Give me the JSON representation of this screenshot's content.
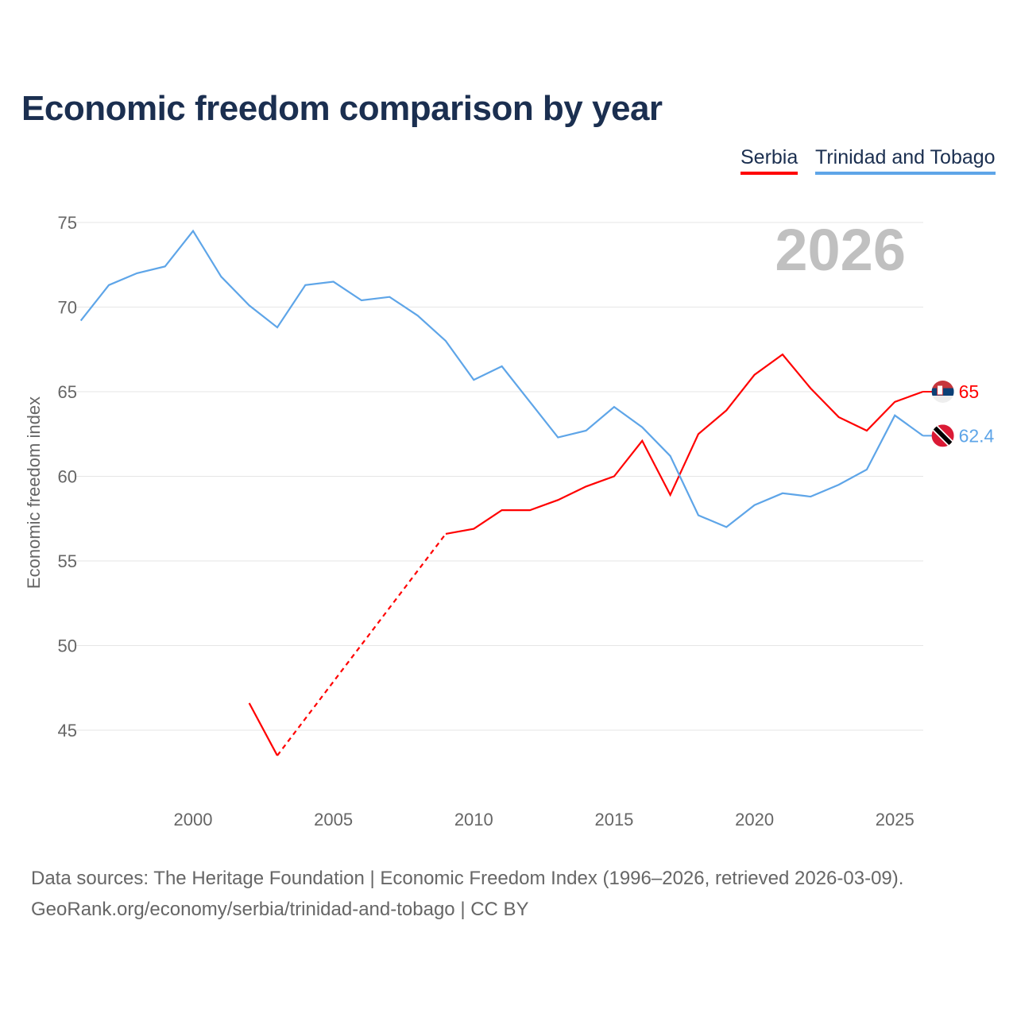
{
  "chart_data": {
    "type": "line",
    "title": "Economic freedom comparison by year",
    "xlabel": "",
    "ylabel": "Economic freedom index",
    "xlim": [
      1996,
      2026
    ],
    "ylim": [
      41,
      77
    ],
    "yticks": [
      45,
      50,
      55,
      60,
      65,
      70,
      75
    ],
    "xticks": [
      2000,
      2005,
      2010,
      2015,
      2020,
      2025
    ],
    "grid": true,
    "legend_position": "top-right",
    "year_watermark": "2026",
    "series": [
      {
        "name": "Serbia",
        "color": "#ff0000",
        "end_label": "65",
        "flag": "serbia-flag",
        "x": [
          2002,
          2003,
          2009,
          2010,
          2011,
          2012,
          2013,
          2014,
          2015,
          2016,
          2017,
          2018,
          2019,
          2020,
          2021,
          2022,
          2023,
          2024,
          2025,
          2026
        ],
        "y": [
          46.6,
          43.5,
          56.6,
          56.9,
          58.0,
          58.0,
          58.6,
          59.4,
          60.0,
          62.1,
          58.9,
          62.5,
          63.9,
          66.0,
          67.2,
          65.2,
          63.5,
          62.7,
          64.4,
          65.0
        ],
        "gaps": [
          [
            2003,
            2009
          ]
        ]
      },
      {
        "name": "Trinidad and Tobago",
        "color": "#5ea5e8",
        "end_label": "62.4",
        "flag": "trinidad-and-tobago-flag",
        "x": [
          1996,
          1997,
          1998,
          1999,
          2000,
          2001,
          2002,
          2003,
          2004,
          2005,
          2006,
          2007,
          2008,
          2009,
          2010,
          2011,
          2012,
          2013,
          2014,
          2015,
          2016,
          2017,
          2018,
          2019,
          2020,
          2021,
          2022,
          2023,
          2024,
          2025,
          2026
        ],
        "y": [
          69.2,
          71.3,
          72.0,
          72.4,
          74.5,
          71.8,
          70.1,
          68.8,
          71.3,
          71.5,
          70.4,
          70.6,
          69.5,
          68.0,
          65.7,
          66.5,
          64.4,
          62.3,
          62.7,
          64.1,
          62.9,
          61.2,
          57.7,
          57.0,
          58.3,
          59.0,
          58.8,
          59.5,
          60.4,
          63.6,
          62.4
        ],
        "gaps": []
      }
    ]
  },
  "footer": {
    "line1": "Data sources: The Heritage Foundation | Economic Freedom Index (1996–2026, retrieved 2026-03-09).",
    "line2": "GeoRank.org/economy/serbia/trinidad-and-tobago | CC BY"
  }
}
